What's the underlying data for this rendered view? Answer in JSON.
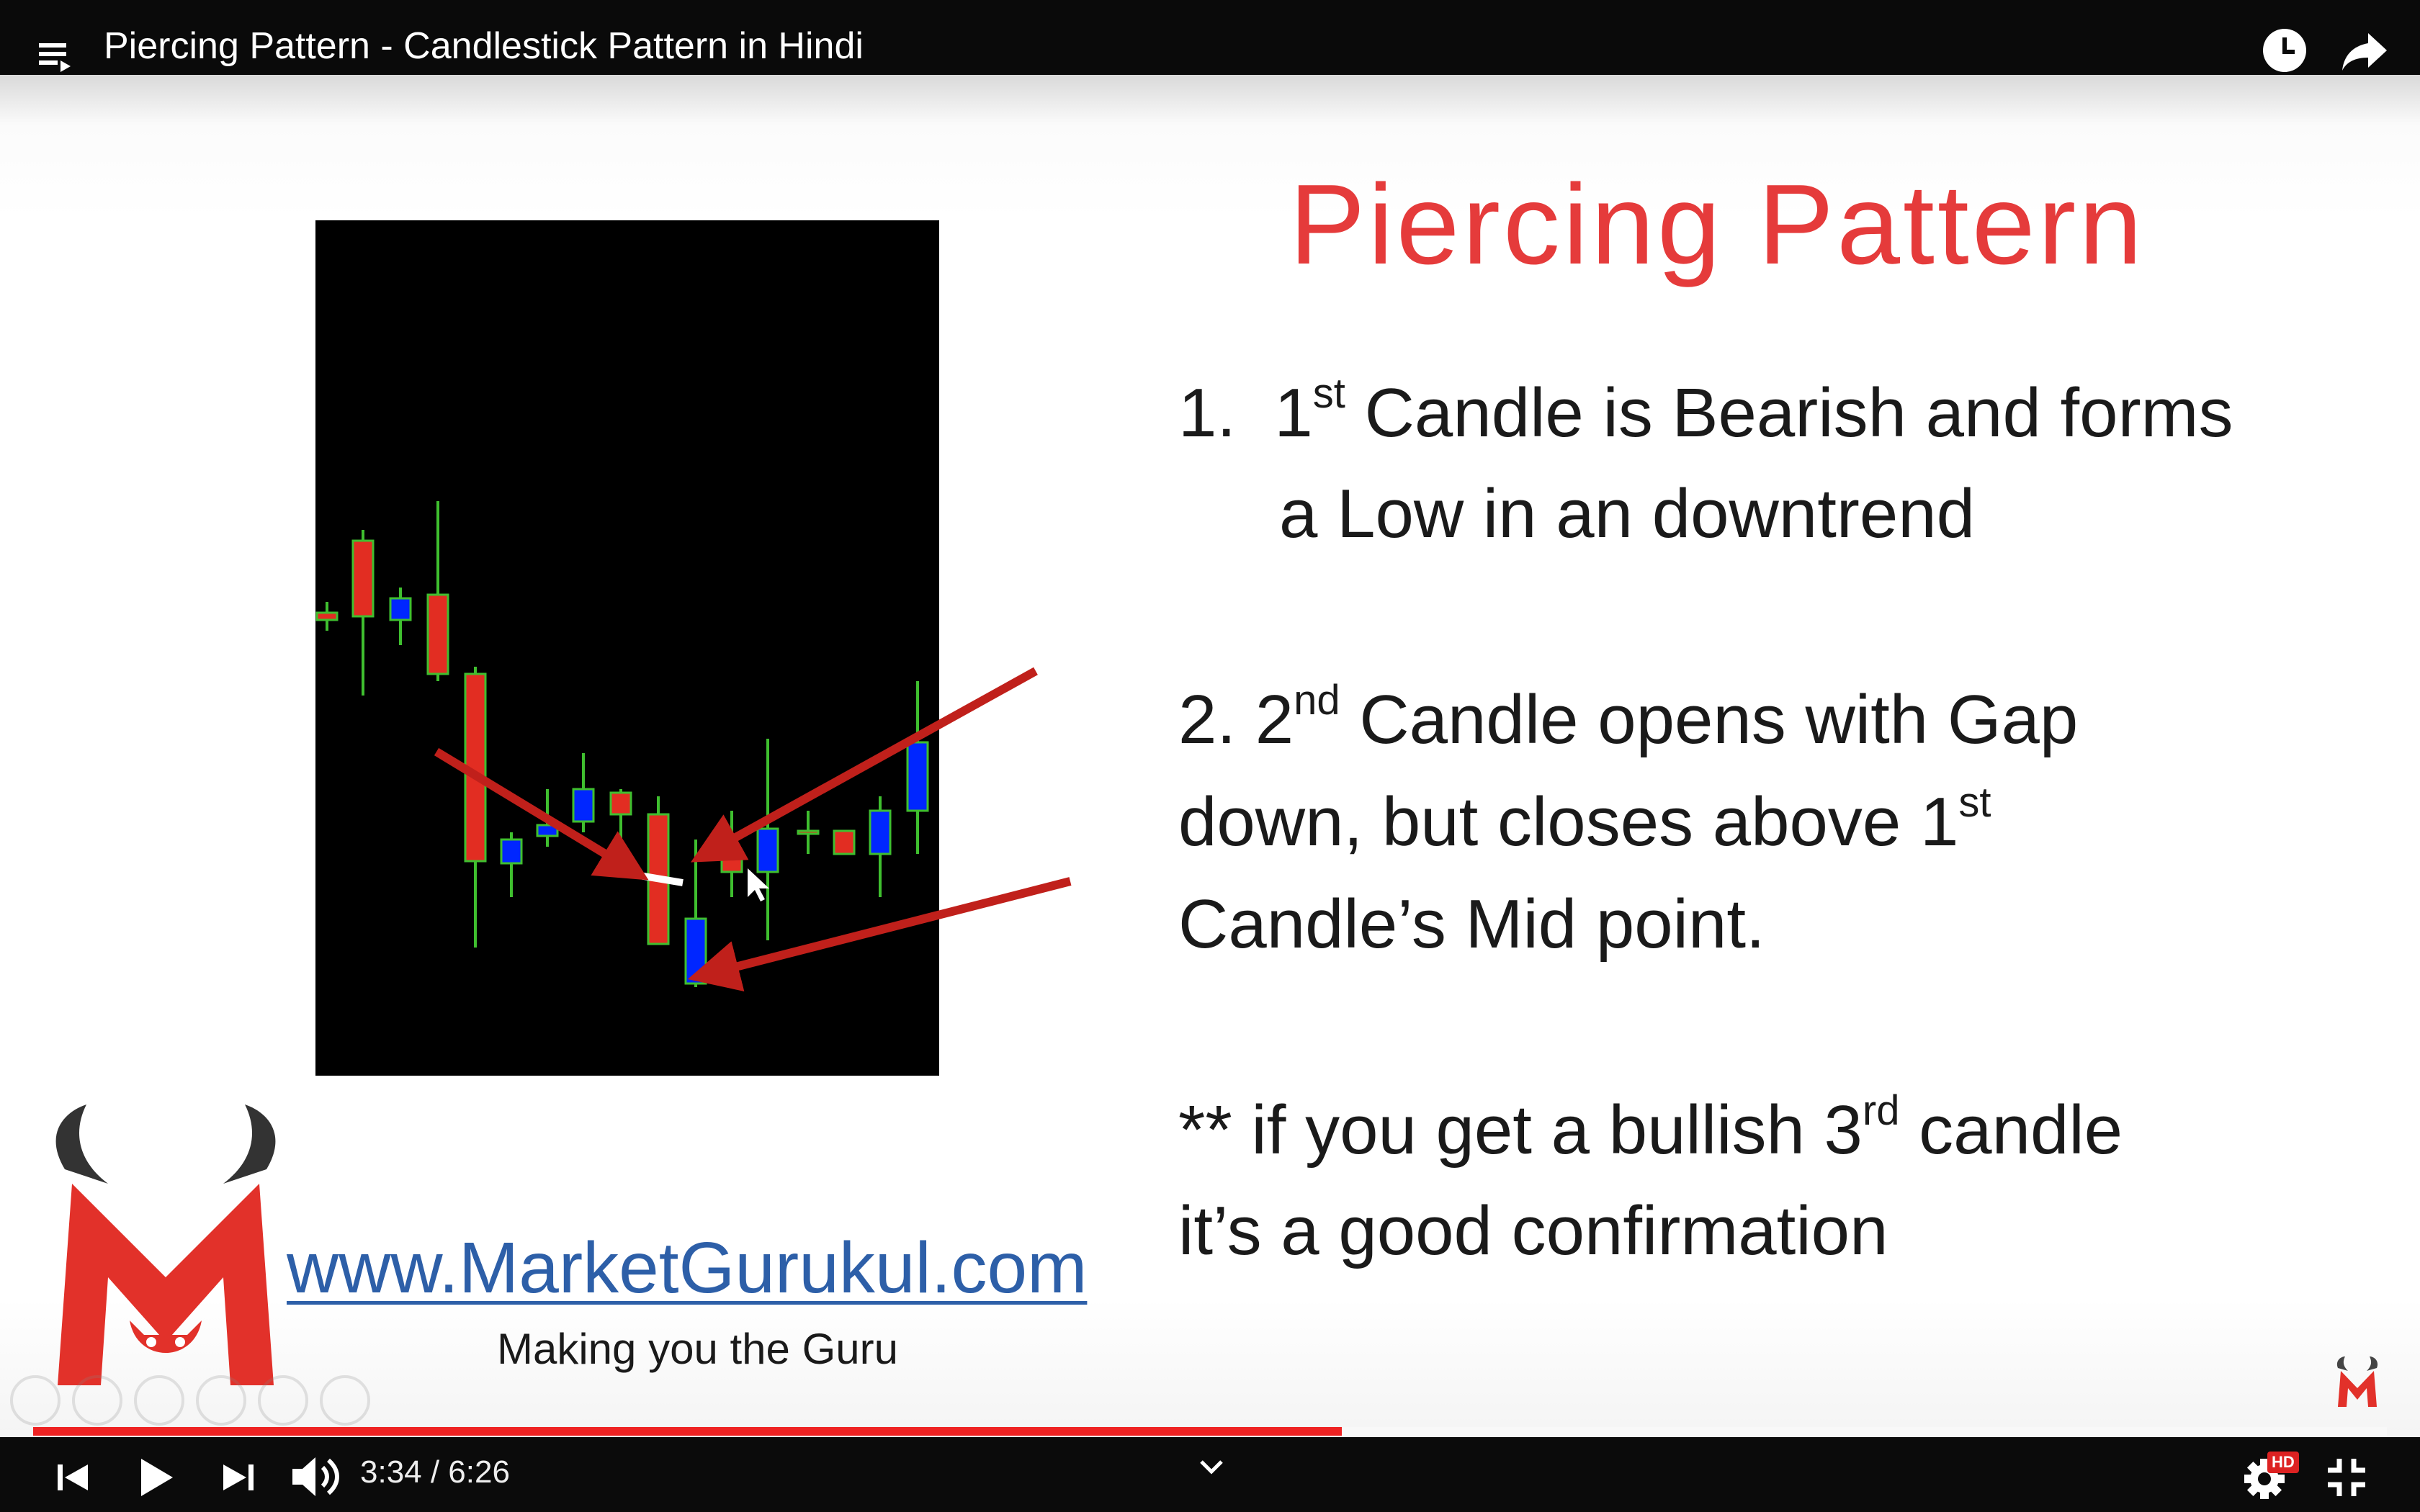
{
  "player": {
    "title": "Piercing Pattern - Candlestick Pattern in Hindi",
    "time": "3:34 / 6:26",
    "progress_fraction": 0.556,
    "hd_label": "HD",
    "accent": "#e62117"
  },
  "slide": {
    "title": "Piercing  Pattern",
    "point1": {
      "number": "1.",
      "lead": "1",
      "lead_sup": "st",
      "line1_rest": " Candle is Bearish and forms",
      "line2": "a Low in an downtrend"
    },
    "point2": {
      "lead": "2. 2",
      "lead_sup": "nd",
      "line1_rest": " Candle opens with Gap",
      "line2": "down, but closes above 1",
      "line2_sup": "st",
      "line3": "Candle’s Mid point."
    },
    "point3": {
      "lead": "** if you get a bullish 3",
      "lead_sup": "rd",
      "line1_rest": " candle",
      "line2": "it’s a good confirmation"
    },
    "website": "www.MarketGurukul.com",
    "tagline": "Making you the Guru",
    "logo_letter": "M",
    "colors": {
      "title": "#e53b3b",
      "website": "#2d5fa8",
      "bull": "#0026ff",
      "bear": "#e22d22",
      "wick": "#3fbf2f",
      "arrow": "#c0201b"
    }
  },
  "icons": {
    "playlist": "playlist-icon",
    "watch_later": "clock-icon",
    "share": "share-icon",
    "prev": "skip-previous-icon",
    "play": "play-icon",
    "next": "skip-next-icon",
    "volume": "volume-icon",
    "settings": "gear-icon",
    "exit_fullscreen": "exit-fullscreen-icon"
  }
}
